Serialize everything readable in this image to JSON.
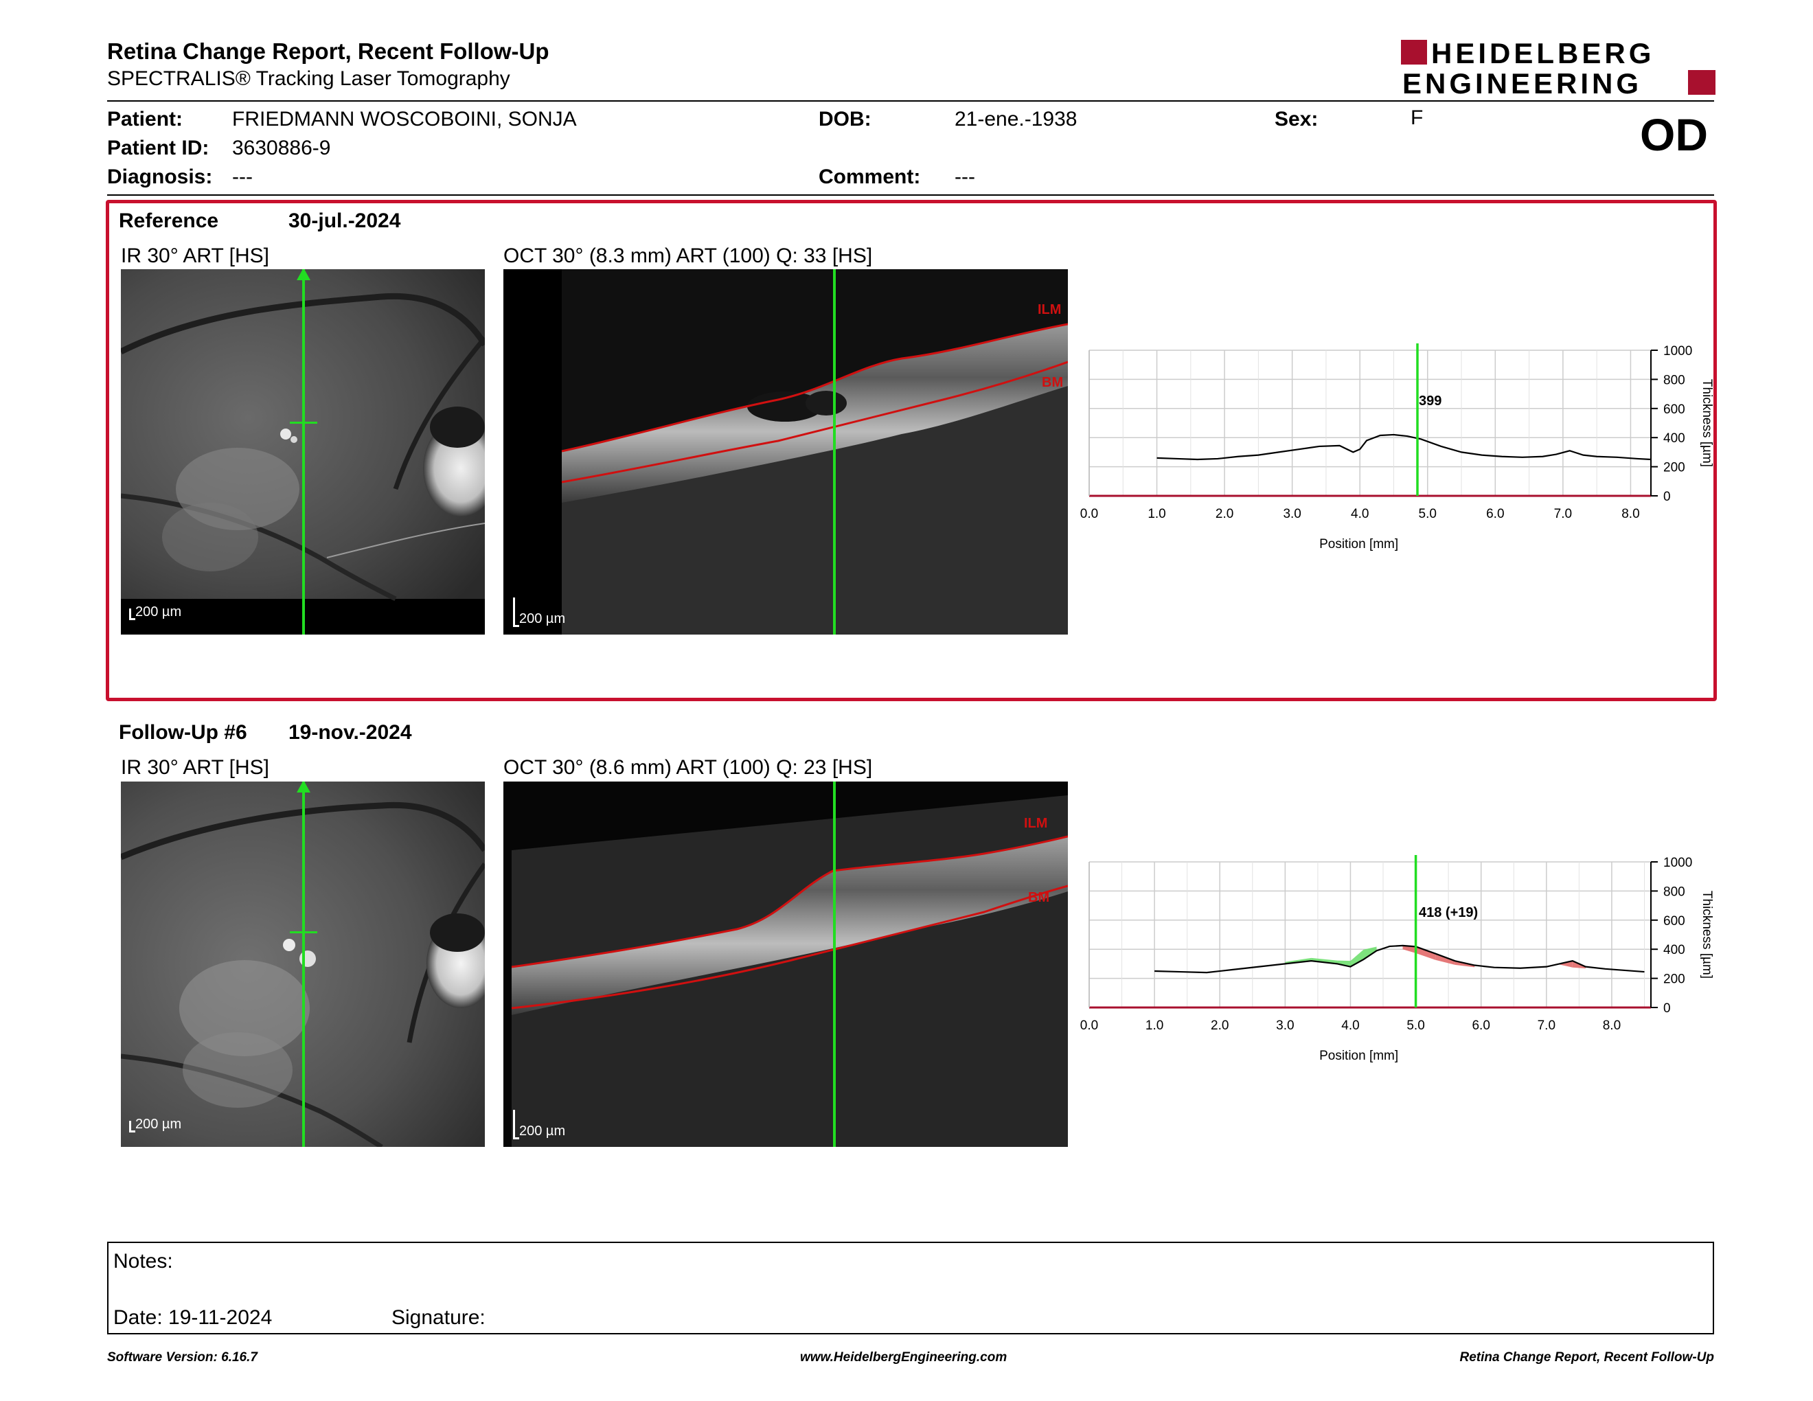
{
  "header": {
    "title": "Retina Change Report, Recent Follow-Up",
    "subtitle": "SPECTRALIS® Tracking Laser Tomography",
    "brand_line1": "HEIDELBERG",
    "brand_line2": "ENGINEERING",
    "eye": "OD"
  },
  "patient": {
    "patient_label": "Patient:",
    "patient_value": "FRIEDMANN WOSCOBOINI,  SONJA",
    "id_label": "Patient ID:",
    "id_value": "3630886-9",
    "diagnosis_label": "Diagnosis:",
    "diagnosis_value": "---",
    "dob_label": "DOB:",
    "dob_value": "21-ene.-1938",
    "comment_label": "Comment:",
    "comment_value": "---",
    "sex_label": "Sex:",
    "sex_value": "F"
  },
  "reference": {
    "label": "Reference",
    "date": "30-jul.-2024",
    "ir_caption": "IR 30° ART [HS]",
    "oct_caption": "OCT 30° (8.3 mm) ART (100) Q: 33 [HS]",
    "scale_ir": "200 µm",
    "scale_oct": "200 µm",
    "ilm_label": "ILM",
    "bm_label": "BM",
    "cursor_value_label": "399"
  },
  "followup": {
    "label": "Follow-Up #6",
    "date": "19-nov.-2024",
    "ir_caption": "IR 30° ART [HS]",
    "oct_caption": "OCT 30° (8.6 mm) ART (100) Q: 23 [HS]",
    "scale_ir": "200 µm",
    "scale_oct": "200 µm",
    "ilm_label": "ILM",
    "bm_label": "BM",
    "cursor_value_label": "418 (+19)"
  },
  "notes": {
    "notes_label": "Notes:",
    "date_label": "Date: 19-11-2024",
    "signature_label": "Signature:"
  },
  "footer": {
    "software": "Software Version: 6.16.7",
    "website": "www.HeidelbergEngineering.com",
    "report_name": "Retina Change Report, Recent Follow-Up"
  },
  "colors": {
    "brand_red": "#a8102e",
    "frame_red": "#c8102e",
    "cursor_green": "#22dd22",
    "ilm_red": "#d01010",
    "increase_green": "#66dd66",
    "decrease_red": "#e06060"
  },
  "chart_data": [
    {
      "type": "line",
      "xlabel": "Position [mm]",
      "ylabel": "Thickness [µm]",
      "xlim": [
        0,
        8.3
      ],
      "ylim": [
        0,
        1000
      ],
      "x_ticks": [
        "0.0",
        "1.0",
        "2.0",
        "3.0",
        "4.0",
        "5.0",
        "6.0",
        "7.0",
        "8.0"
      ],
      "y_ticks": [
        "0",
        "200",
        "400",
        "600",
        "800",
        "1000"
      ],
      "grid": true,
      "cursor_x": 4.85,
      "series": [
        {
          "x": [
            1.0,
            1.3,
            1.6,
            1.9,
            2.2,
            2.5,
            2.8,
            3.1,
            3.4,
            3.7,
            3.9,
            4.0,
            4.1,
            4.3,
            4.5,
            4.7,
            4.9,
            5.2,
            5.5,
            5.8,
            6.1,
            6.4,
            6.7,
            6.9,
            7.1,
            7.3,
            7.5,
            7.8,
            8.1,
            8.3
          ],
          "y": [
            260,
            255,
            250,
            255,
            270,
            280,
            300,
            320,
            340,
            345,
            300,
            320,
            380,
            415,
            420,
            410,
            390,
            340,
            300,
            280,
            270,
            265,
            270,
            285,
            310,
            280,
            270,
            265,
            255,
            250
          ]
        }
      ]
    },
    {
      "type": "line",
      "xlabel": "Position [mm]",
      "ylabel": "Thickness [µm]",
      "xlim": [
        0,
        8.6
      ],
      "ylim": [
        0,
        1000
      ],
      "x_ticks": [
        "0.0",
        "1.0",
        "2.0",
        "3.0",
        "4.0",
        "5.0",
        "6.0",
        "7.0",
        "8.0"
      ],
      "y_ticks": [
        "0",
        "200",
        "400",
        "600",
        "800",
        "1000"
      ],
      "grid": true,
      "cursor_x": 5.0,
      "series": [
        {
          "x": [
            1.0,
            1.4,
            1.8,
            2.2,
            2.6,
            3.0,
            3.4,
            3.8,
            4.0,
            4.2,
            4.4,
            4.6,
            4.8,
            5.0,
            5.3,
            5.6,
            5.9,
            6.2,
            6.6,
            7.0,
            7.2,
            7.4,
            7.6,
            7.9,
            8.2,
            8.5
          ],
          "y": [
            250,
            245,
            240,
            260,
            280,
            300,
            320,
            300,
            280,
            330,
            390,
            420,
            425,
            418,
            370,
            320,
            290,
            275,
            270,
            280,
            300,
            320,
            280,
            265,
            255,
            245
          ]
        }
      ]
    }
  ]
}
